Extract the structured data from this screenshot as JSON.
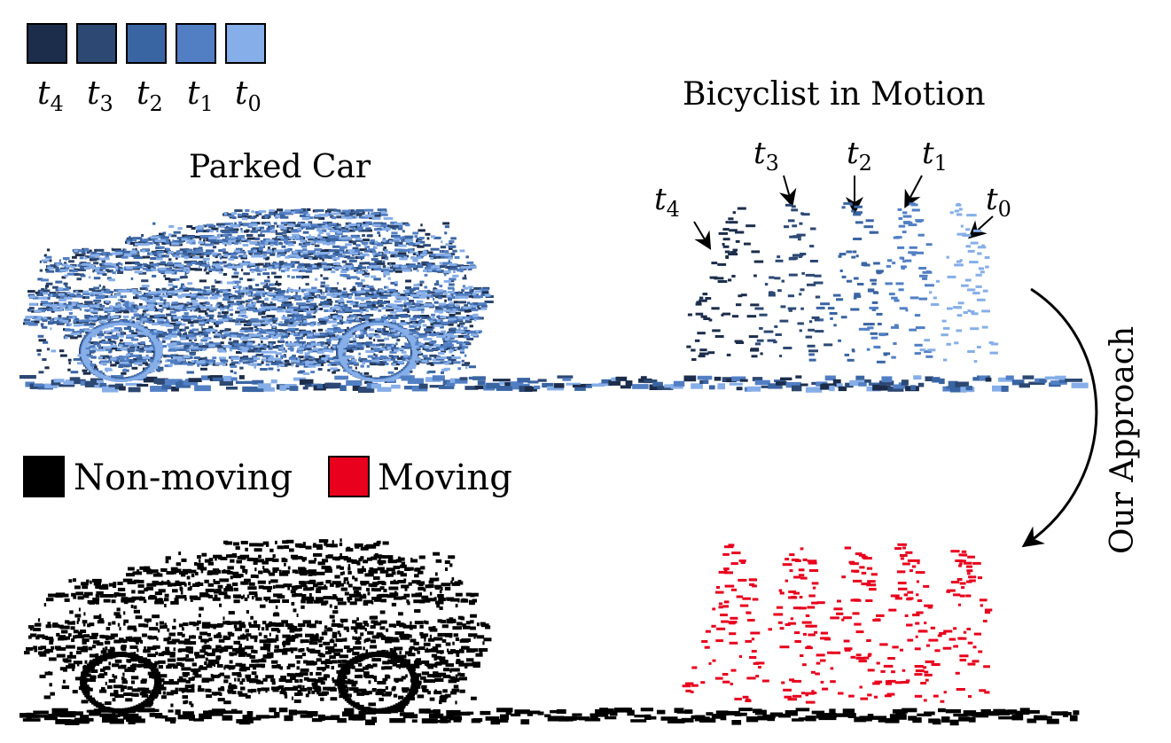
{
  "time_legend": {
    "colors": [
      "#1c2d4b",
      "#2c4873",
      "#3a65a3",
      "#527fc4",
      "#86aee8"
    ],
    "labels": [
      "t4",
      "t3",
      "t2",
      "t1",
      "t0"
    ]
  },
  "top_panel": {
    "parked_car_label": "Parked Car",
    "bicyclist_label": "Bicyclist in Motion",
    "time_tags": [
      "t4",
      "t3",
      "t2",
      "t1",
      "t0"
    ]
  },
  "arrow_label": "Our Approach",
  "motion_legend": {
    "non_moving_label": "Non-moving",
    "non_moving_color": "#000000",
    "moving_label": "Moving",
    "moving_color": "#e8001c"
  }
}
